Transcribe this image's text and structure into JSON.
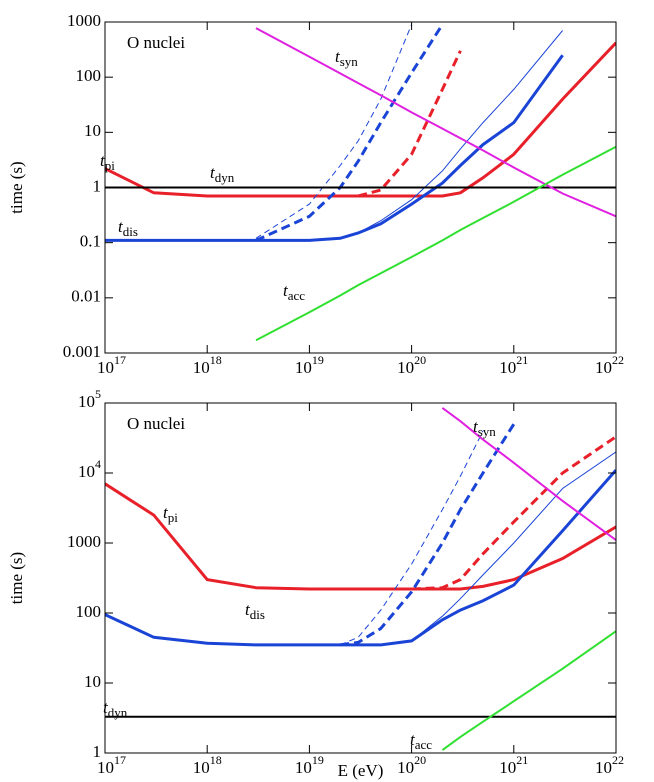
{
  "chart_data": [
    {
      "type": "line",
      "annotation": "O nuclei",
      "ylabel": "time (s)",
      "log_x": true,
      "log_y": true,
      "x": [
        1e+17,
        3e+17,
        1e+18,
        3e+18,
        1e+19,
        2e+19,
        3e+19,
        5e+19,
        1e+20,
        2e+20,
        3e+20,
        5e+20,
        1e+21,
        3e+21,
        1e+22
      ],
      "xlim": [
        1e+17,
        1e+22
      ],
      "xticks": [
        {
          "value": 1e+17,
          "label": "10^17"
        },
        {
          "value": 1e+18,
          "label": "10^18"
        },
        {
          "value": 1e+19,
          "label": "10^19"
        },
        {
          "value": 1e+20,
          "label": "10^20"
        },
        {
          "value": 1e+21,
          "label": "10^21"
        },
        {
          "value": 1e+22,
          "label": "10^22"
        }
      ],
      "ylim": [
        0.001,
        1000
      ],
      "yticks": [
        0.001,
        0.01,
        0.1,
        1,
        10,
        100,
        1000
      ],
      "series": [
        {
          "name": "t_pi",
          "color": "#e8202a",
          "linewidth": 3,
          "dashed": false,
          "values": [
            2.2,
            0.8,
            0.7,
            0.7,
            0.7,
            0.7,
            0.7,
            0.7,
            0.7,
            0.7,
            0.8,
            1.5,
            4,
            40,
            420
          ]
        },
        {
          "color": "#e8202a",
          "linewidth": 3,
          "dashed": true,
          "values": [
            null,
            null,
            null,
            null,
            null,
            null,
            0.7,
            0.9,
            4,
            60,
            300,
            null,
            null,
            null,
            null
          ]
        },
        {
          "name": "t_dis",
          "color": "#1a44d6",
          "linewidth": 3,
          "dashed": false,
          "values": [
            0.11,
            0.11,
            0.11,
            0.11,
            0.11,
            0.12,
            0.15,
            0.22,
            0.5,
            1.2,
            2.5,
            6,
            15,
            250,
            null
          ]
        },
        {
          "color": "#1a44d6",
          "linewidth": 3,
          "dashed": true,
          "values": [
            null,
            null,
            null,
            0.11,
            0.3,
            1,
            3,
            15,
            120,
            900,
            null,
            null,
            null,
            null,
            null
          ]
        },
        {
          "color": "#1a44d6",
          "linewidth": 1,
          "dashed": false,
          "values": [
            null,
            null,
            null,
            null,
            0.11,
            0.12,
            0.15,
            0.25,
            0.6,
            2,
            5,
            15,
            60,
            700,
            null
          ]
        },
        {
          "color": "#1a44d6",
          "linewidth": 1,
          "dashed": true,
          "values": [
            null,
            null,
            null,
            0.12,
            0.5,
            2.5,
            7,
            40,
            900,
            null,
            null,
            null,
            null,
            null,
            null
          ]
        },
        {
          "name": "t_dyn",
          "color": "#000000",
          "linewidth": 2,
          "dashed": false,
          "values": [
            1,
            1,
            1,
            1,
            1,
            1,
            1,
            1,
            1,
            1,
            1,
            1,
            1,
            1,
            1
          ]
        },
        {
          "name": "t_syn",
          "color": "#e020e0",
          "linewidth": 2,
          "dashed": false,
          "values": [
            null,
            null,
            null,
            776,
            234,
            117,
            78,
            47,
            23,
            11.7,
            7.8,
            4.7,
            2.3,
            0.78,
            0.3
          ]
        },
        {
          "name": "t_acc",
          "color": "#30e030",
          "linewidth": 2,
          "dashed": false,
          "values": [
            null,
            null,
            null,
            0.0017,
            0.0055,
            0.011,
            0.017,
            0.028,
            0.055,
            0.11,
            0.17,
            0.28,
            0.55,
            1.7,
            5.5
          ]
        }
      ]
    },
    {
      "type": "line",
      "annotation": "O nuclei",
      "ylabel": "time (s)",
      "xlabel": "E (eV)",
      "log_x": true,
      "log_y": true,
      "x": [
        1e+17,
        3e+17,
        1e+18,
        3e+18,
        1e+19,
        2e+19,
        3e+19,
        5e+19,
        1e+20,
        2e+20,
        3e+20,
        5e+20,
        1e+21,
        3e+21,
        1e+22
      ],
      "xlim": [
        1e+17,
        1e+22
      ],
      "xticks": [
        {
          "value": 1e+17,
          "label": "10^17"
        },
        {
          "value": 1e+18,
          "label": "10^18"
        },
        {
          "value": 1e+19,
          "label": "10^19"
        },
        {
          "value": 1e+20,
          "label": "10^20"
        },
        {
          "value": 1e+21,
          "label": "10^21"
        },
        {
          "value": 1e+22,
          "label": "10^22"
        }
      ],
      "ylim": [
        1,
        100000
      ],
      "yticks": [
        1,
        10,
        100,
        1000,
        {
          "value": 10000,
          "label": "10^4"
        },
        {
          "value": 100000,
          "label": "10^5"
        }
      ],
      "series": [
        {
          "name": "t_pi",
          "color": "#e8202a",
          "linewidth": 3,
          "dashed": false,
          "values": [
            7000,
            2500,
            300,
            230,
            220,
            220,
            220,
            220,
            220,
            220,
            220,
            240,
            300,
            600,
            1700
          ]
        },
        {
          "color": "#e8202a",
          "linewidth": 3,
          "dashed": true,
          "values": [
            null,
            null,
            null,
            null,
            null,
            null,
            null,
            null,
            220,
            230,
            300,
            700,
            2000,
            10000,
            33000
          ]
        },
        {
          "name": "t_dis",
          "color": "#1a44d6",
          "linewidth": 3,
          "dashed": false,
          "values": [
            95,
            45,
            37,
            35,
            35,
            35,
            35,
            35,
            40,
            80,
            110,
            150,
            250,
            1500,
            11000
          ]
        },
        {
          "color": "#1a44d6",
          "linewidth": 3,
          "dashed": true,
          "values": [
            null,
            null,
            null,
            null,
            null,
            35,
            38,
            60,
            200,
            1000,
            3000,
            10000,
            50000,
            null,
            null
          ]
        },
        {
          "color": "#1a44d6",
          "linewidth": 1,
          "dashed": false,
          "values": [
            null,
            null,
            null,
            null,
            35,
            35,
            35,
            35,
            40,
            90,
            160,
            350,
            1000,
            6000,
            20000
          ]
        },
        {
          "color": "#1a44d6",
          "linewidth": 1,
          "dashed": true,
          "values": [
            null,
            null,
            null,
            null,
            null,
            35,
            45,
            110,
            500,
            3000,
            9000,
            40000,
            null,
            null,
            null
          ]
        },
        {
          "name": "t_dyn",
          "color": "#000000",
          "linewidth": 2,
          "dashed": false,
          "values": [
            3.3,
            3.3,
            3.3,
            3.3,
            3.3,
            3.3,
            3.3,
            3.3,
            3.3,
            3.3,
            3.3,
            3.3,
            3.3,
            3.3,
            3.3
          ]
        },
        {
          "name": "t_syn",
          "color": "#e020e0",
          "linewidth": 2,
          "dashed": false,
          "values": [
            null,
            null,
            null,
            null,
            null,
            null,
            null,
            null,
            null,
            85000,
            55000,
            30000,
            14000,
            4000,
            1100
          ]
        },
        {
          "name": "t_acc",
          "color": "#30e030",
          "linewidth": 2,
          "dashed": false,
          "values": [
            null,
            null,
            null,
            null,
            null,
            null,
            null,
            null,
            null,
            1.1,
            1.7,
            2.8,
            5.5,
            16,
            55
          ]
        }
      ]
    }
  ]
}
